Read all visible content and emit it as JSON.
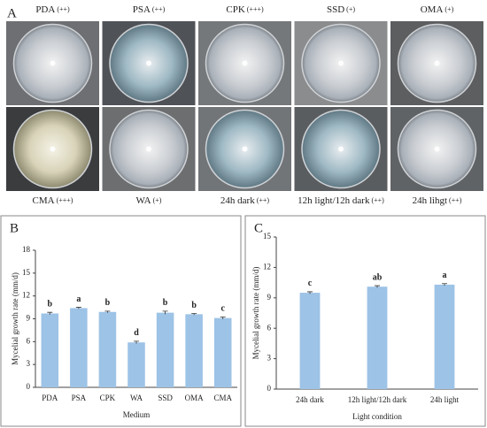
{
  "panel_a": {
    "label": "A",
    "plates": [
      {
        "name": "PDA",
        "rating": "(++)"
      },
      {
        "name": "PSA",
        "rating": "(++)"
      },
      {
        "name": "CPK",
        "rating": "(+++)"
      },
      {
        "name": "SSD",
        "rating": "(+)"
      },
      {
        "name": "OMA",
        "rating": "(+)"
      },
      {
        "name": "CMA",
        "rating": "(+++)"
      },
      {
        "name": "WA",
        "rating": "(+)"
      },
      {
        "name": "24h dark",
        "rating": "(++)"
      },
      {
        "name": "12h light/12h dark",
        "rating": "(++)"
      },
      {
        "name": "24h lihgt",
        "rating": "(++)"
      }
    ]
  },
  "chart_data": [
    {
      "type": "bar",
      "panel": "B",
      "ylabel": "Mycelial growth rate (mm/d)",
      "xlabel": "Medium",
      "categories": [
        "PDA",
        "PSA",
        "CPK",
        "WA",
        "SSD",
        "OMA",
        "CMA"
      ],
      "values": [
        9.7,
        10.4,
        9.9,
        5.9,
        9.8,
        9.6,
        9.1
      ],
      "errors": [
        0.15,
        0.1,
        0.1,
        0.15,
        0.2,
        0.1,
        0.15
      ],
      "letters": [
        "b",
        "a",
        "b",
        "d",
        "b",
        "b",
        "c"
      ],
      "color": "#9dc3e6",
      "ylim": [
        0,
        18
      ],
      "yticks": [
        0,
        3,
        6,
        9,
        12,
        15,
        18
      ]
    },
    {
      "type": "bar",
      "panel": "C",
      "ylabel": "Mycelial growth rate (mm/d)",
      "xlabel": "Light condition",
      "categories": [
        "24h dark",
        "12h light/12h dark",
        "24h light"
      ],
      "values": [
        9.5,
        10.1,
        10.3
      ],
      "errors": [
        0.1,
        0.1,
        0.1
      ],
      "letters": [
        "c",
        "ab",
        "a"
      ],
      "color": "#9dc3e6",
      "ylim": [
        0,
        15
      ],
      "yticks": [
        0,
        3,
        6,
        9,
        12,
        15
      ]
    }
  ]
}
